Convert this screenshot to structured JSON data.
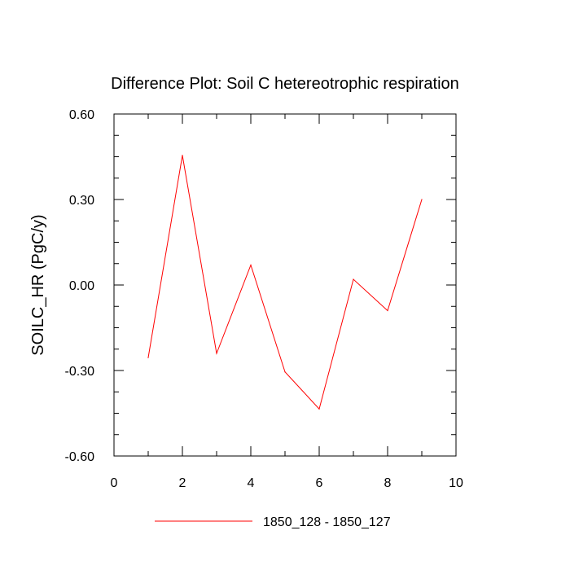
{
  "chart_data": {
    "type": "line",
    "title": "Difference Plot: Soil C hetereotrophic respiration",
    "xlabel": "",
    "ylabel": "SOILC_HR  (PgC/y)",
    "xlim": [
      0,
      10
    ],
    "ylim": [
      -0.6,
      0.6
    ],
    "x_ticks": [
      "0",
      "2",
      "4",
      "6",
      "8",
      "10"
    ],
    "y_ticks": [
      "-0.60",
      "-0.30",
      "0.00",
      "0.30",
      "0.60"
    ],
    "grid": false,
    "legend_position": "bottom",
    "series": [
      {
        "name": "1850_128 - 1850_127",
        "color": "#ff0000",
        "x": [
          1,
          2,
          3,
          4,
          5,
          6,
          7,
          8,
          9
        ],
        "y": [
          -0.255,
          0.455,
          -0.24,
          0.07,
          -0.305,
          -0.435,
          0.02,
          -0.09,
          0.3
        ]
      }
    ]
  }
}
